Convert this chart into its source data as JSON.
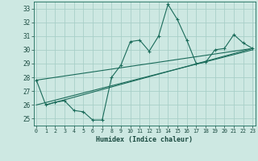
{
  "xlabel": "Humidex (Indice chaleur)",
  "background_color": "#cde8e2",
  "grid_color": "#a8cfc8",
  "line_color": "#1a6b5a",
  "x_data": [
    0,
    1,
    2,
    3,
    4,
    5,
    6,
    7,
    8,
    9,
    10,
    11,
    12,
    13,
    14,
    15,
    16,
    17,
    18,
    19,
    20,
    21,
    22,
    23
  ],
  "y_main": [
    27.8,
    26.0,
    26.2,
    26.3,
    25.6,
    25.5,
    24.9,
    24.9,
    28.0,
    28.9,
    30.6,
    30.7,
    29.9,
    31.0,
    33.3,
    32.2,
    30.7,
    29.0,
    29.1,
    30.0,
    30.1,
    31.1,
    30.5,
    30.1
  ],
  "trend1_x": [
    0,
    23
  ],
  "trend1_y": [
    27.8,
    30.1
  ],
  "trend2_x": [
    0,
    23
  ],
  "trend2_y": [
    26.0,
    30.0
  ],
  "trend3_x": [
    1,
    23
  ],
  "trend3_y": [
    26.0,
    30.1
  ],
  "ylim": [
    24.5,
    33.5
  ],
  "yticks": [
    25,
    26,
    27,
    28,
    29,
    30,
    31,
    32,
    33
  ],
  "xlim": [
    -0.3,
    23.3
  ],
  "xticks": [
    0,
    1,
    2,
    3,
    4,
    5,
    6,
    7,
    8,
    9,
    10,
    11,
    12,
    13,
    14,
    15,
    16,
    17,
    18,
    19,
    20,
    21,
    22,
    23
  ],
  "fig_width": 3.2,
  "fig_height": 2.0,
  "dpi": 100
}
